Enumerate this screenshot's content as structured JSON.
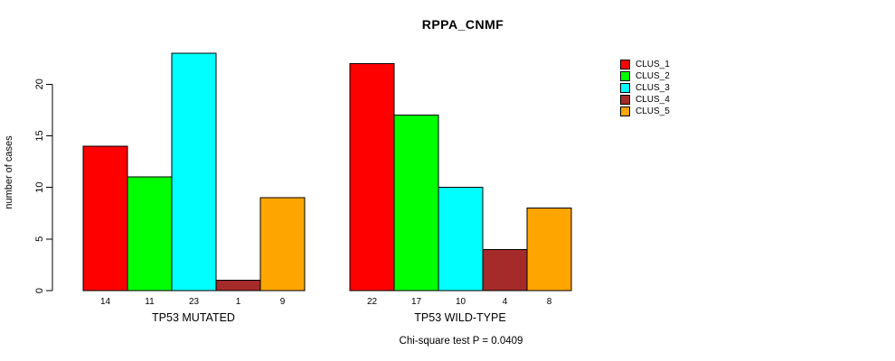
{
  "title": "RPPA_CNMF",
  "y_axis_label": "number of cases",
  "annotation": "Chi-square test P = 0.0409",
  "chart_data": {
    "type": "bar",
    "title": "RPPA_CNMF",
    "xlabel": "",
    "ylabel": "number of cases",
    "ylim": [
      0,
      23
    ],
    "yticks": [
      0,
      5,
      10,
      15,
      20
    ],
    "grid": false,
    "legend_position": "right",
    "bar_border_color": "#000000",
    "groups": [
      {
        "label": "TP53 MUTATED",
        "values": [
          14,
          11,
          23,
          1,
          9
        ]
      },
      {
        "label": "TP53 WILD-TYPE",
        "values": [
          22,
          17,
          10,
          4,
          8
        ]
      }
    ],
    "series_colors": [
      "#FF0000",
      "#00FF00",
      "#00FFFF",
      "#A52A2A",
      "#FFA500"
    ],
    "legend": [
      {
        "label": "CLUS_1",
        "color": "#FF0000"
      },
      {
        "label": "CLUS_2",
        "color": "#00FF00"
      },
      {
        "label": "CLUS_3",
        "color": "#00FFFF"
      },
      {
        "label": "CLUS_4",
        "color": "#A52A2A"
      },
      {
        "label": "CLUS_5",
        "color": "#FFA500"
      }
    ],
    "annotation": "Chi-square test P = 0.0409"
  }
}
